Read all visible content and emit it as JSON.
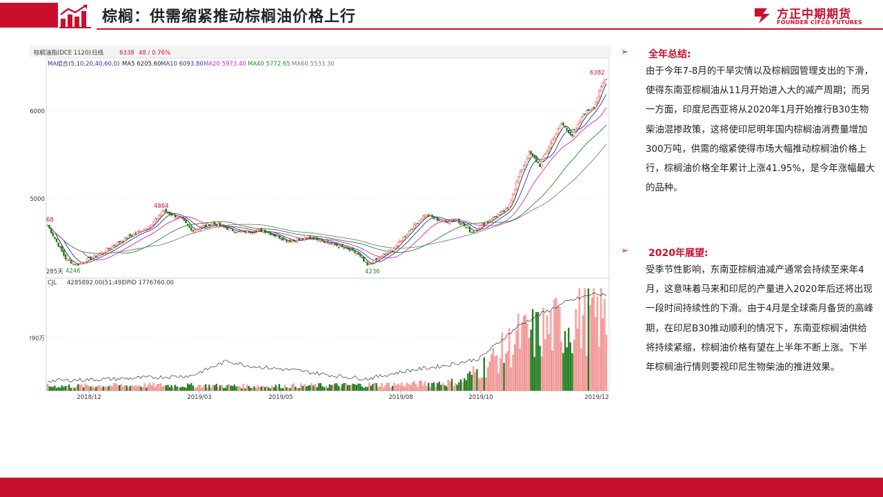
{
  "header": {
    "title": "棕榈：供需缩紧推动棕榈油价格上行",
    "brand_cn": "方正中期期货",
    "brand_en": "FOUNDER CIFCO FUTURES"
  },
  "summary": {
    "heading": "全年总结:",
    "text": "由于今年7-8月的干旱灾情以及棕榈园管理支出的下滑，使得东南亚棕榈油从11月开始进入大的减产周期；而另一方面，印度尼西亚将从2020年1月开始推行B30生物柴油混掺政策，这将使印尼明年国内棕榈油消费量增加300万吨，供需的缩紧使得市场大幅推动棕榈油价格上行，棕榈油价格全年累计上涨41.95%，是今年涨幅最大的品种。"
  },
  "outlook": {
    "heading": "2020年展望:",
    "text": "受季节性影响，东南亚棕榈油减产通常会持续至来年4月，这意味着马来和印尼的产量进入2020年后还将出现一段时间持续性的下滑。由于4月是全球斋月备货的高峰期，在印尼B30推动顺利的情况下，东南亚棕榈油供给将持续紧缩，棕榈油价格有望在上半年不断上涨。下半年棕榈油行情则要视印尼生物柴油的推进效果。"
  },
  "chart_data": {
    "type": "candlestick",
    "info_bar": {
      "symbol": "棕榈油指(DCE 1120)",
      "period": "日线",
      "last": "6338",
      "change": "48 / 0.76%"
    },
    "ma_legend": {
      "title": "MA组合(5,10,20,40,60,0)",
      "items": [
        {
          "label": "MA5 6205.60",
          "color": "#222222"
        },
        {
          "label": "MA10 6093.80",
          "color": "#1f3a93"
        },
        {
          "label": "MA20 5973.40",
          "color": "#d11fbf"
        },
        {
          "label": "MA40 5772.65",
          "color": "#1f8a1f"
        },
        {
          "label": "MA60 5533.30",
          "color": "#7a7a7a"
        }
      ]
    },
    "annotations": {
      "high_label": "6382",
      "mid_high_label": "4864",
      "low1_label": "4246",
      "low2_label": "4236",
      "left_edge_label": "68",
      "days_label": "285天"
    },
    "price_axis": {
      "ticks": [
        "6000",
        "5000"
      ],
      "ylim": [
        4150,
        6500
      ]
    },
    "volume_legend": {
      "cjl": "CJL",
      "values": "4285892.00(51:49)",
      "opid": "OPID 1776760.00"
    },
    "volume_axis": {
      "tick": "290万"
    },
    "x_ticks": [
      "2018/12",
      "2019/03",
      "2019/05",
      "2019/08",
      "2019/10",
      "2019/12"
    ],
    "price_keyframes": [
      [
        0,
        4700
      ],
      [
        10,
        4320
      ],
      [
        16,
        4246
      ],
      [
        30,
        4380
      ],
      [
        44,
        4560
      ],
      [
        58,
        4700
      ],
      [
        64,
        4864
      ],
      [
        74,
        4780
      ],
      [
        80,
        4640
      ],
      [
        92,
        4720
      ],
      [
        106,
        4620
      ],
      [
        120,
        4640
      ],
      [
        134,
        4520
      ],
      [
        148,
        4560
      ],
      [
        162,
        4460
      ],
      [
        172,
        4380
      ],
      [
        178,
        4236
      ],
      [
        192,
        4420
      ],
      [
        202,
        4650
      ],
      [
        210,
        4820
      ],
      [
        220,
        4740
      ],
      [
        228,
        4760
      ],
      [
        236,
        4620
      ],
      [
        246,
        4760
      ],
      [
        256,
        4880
      ],
      [
        262,
        5250
      ],
      [
        268,
        5530
      ],
      [
        274,
        5380
      ],
      [
        280,
        5640
      ],
      [
        286,
        5860
      ],
      [
        292,
        5720
      ],
      [
        298,
        5960
      ],
      [
        304,
        6060
      ],
      [
        309,
        6320
      ],
      [
        311,
        6382
      ]
    ],
    "volume_keyframes": [
      [
        0,
        0.05
      ],
      [
        60,
        0.06
      ],
      [
        120,
        0.05
      ],
      [
        200,
        0.07
      ],
      [
        230,
        0.1
      ],
      [
        250,
        0.38
      ],
      [
        262,
        0.6
      ],
      [
        272,
        0.65
      ],
      [
        300,
        0.85
      ],
      [
        311,
        0.82
      ]
    ],
    "oi_keyframes": [
      [
        0,
        0.1
      ],
      [
        40,
        0.12
      ],
      [
        80,
        0.15
      ],
      [
        100,
        0.3
      ],
      [
        112,
        0.25
      ],
      [
        140,
        0.2
      ],
      [
        160,
        0.15
      ],
      [
        178,
        0.12
      ],
      [
        200,
        0.2
      ],
      [
        220,
        0.25
      ],
      [
        240,
        0.32
      ],
      [
        252,
        0.5
      ],
      [
        262,
        0.65
      ],
      [
        272,
        0.75
      ],
      [
        290,
        0.9
      ],
      [
        305,
        0.98
      ],
      [
        311,
        0.95
      ]
    ]
  }
}
